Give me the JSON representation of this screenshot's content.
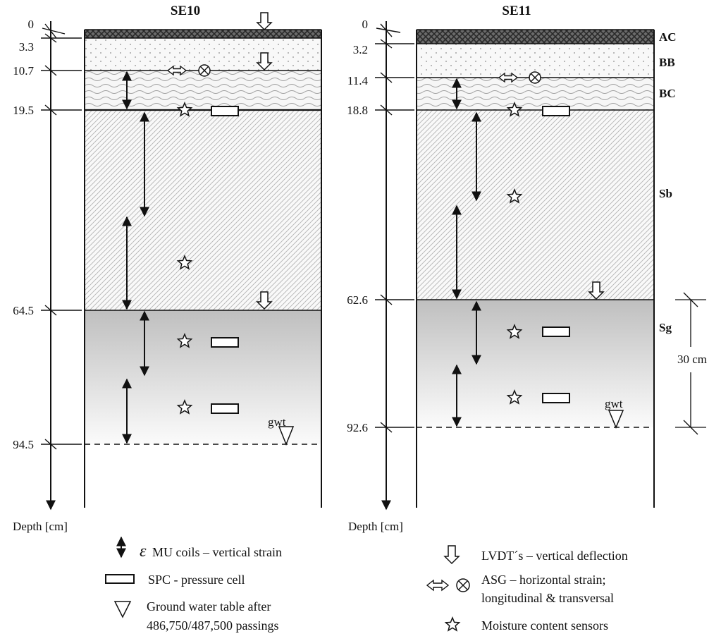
{
  "profiles": [
    {
      "title": "SE10",
      "depth_labels": [
        "0",
        "3.3",
        "10.7",
        "19.5",
        "64.5",
        "94.5"
      ],
      "axis_label": "Depth [cm]",
      "gwt_label": "gwt"
    },
    {
      "title": "SE11",
      "depth_labels": [
        "0",
        "3.2",
        "11.4",
        "18.8",
        "62.6",
        "92.6"
      ],
      "axis_label": "Depth [cm]",
      "gwt_label": "gwt"
    }
  ],
  "layer_labels": [
    "AC",
    "BB",
    "BC",
    "Sb",
    "Sg"
  ],
  "dimension_label": "30 cm",
  "legend": {
    "mu_symbol": "ε",
    "mu_coils": "MU coils – vertical strain",
    "spc": "SPC - pressure cell",
    "gwt_line1": "Ground water table after",
    "gwt_line2": "486,750/487,500 passings",
    "lvdt": "LVDT´s – vertical deflection",
    "asg_line1": "ASG – horizontal strain;",
    "asg_line2": "longitudinal & transversal",
    "moisture": "Moisture content sensors"
  },
  "colors": {
    "ink": "#111111",
    "asphalt": "#5a5a5a",
    "subgrade_top": "#bfbfbf",
    "subgrade_bottom": "#fbfbfb"
  }
}
